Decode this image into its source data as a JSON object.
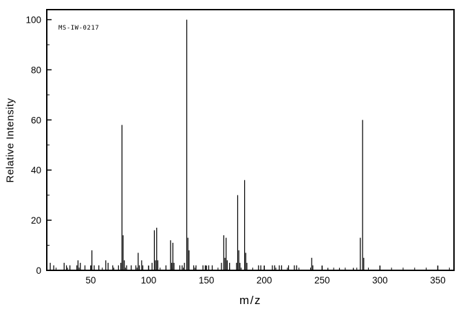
{
  "chart_data": {
    "type": "bar",
    "title": "",
    "annotation": "MS-IW-0217",
    "xlabel": "m/z",
    "ylabel": "Relative Intensity",
    "xlim": [
      12,
      364
    ],
    "ylim": [
      0,
      104
    ],
    "x_major_ticks": [
      50,
      100,
      150,
      200,
      250,
      300,
      350
    ],
    "x_minor_step": 10,
    "y_major_ticks": [
      0,
      20,
      40,
      60,
      80,
      100
    ],
    "y_minor_step": 10,
    "grid": "off",
    "legend": "none",
    "colors": {
      "line": "#000000",
      "background": "#ffffff"
    },
    "peaks": [
      [
        15,
        3
      ],
      [
        18,
        2
      ],
      [
        27,
        3
      ],
      [
        29,
        2
      ],
      [
        32,
        2
      ],
      [
        38,
        2
      ],
      [
        39,
        4
      ],
      [
        41,
        3
      ],
      [
        45,
        2
      ],
      [
        50,
        2
      ],
      [
        51,
        8
      ],
      [
        53,
        2
      ],
      [
        57,
        2
      ],
      [
        63,
        4
      ],
      [
        65,
        3
      ],
      [
        69,
        2
      ],
      [
        74,
        2
      ],
      [
        76,
        3
      ],
      [
        77,
        58
      ],
      [
        78,
        14
      ],
      [
        79,
        4
      ],
      [
        81,
        2
      ],
      [
        85,
        2
      ],
      [
        89,
        2
      ],
      [
        91,
        7
      ],
      [
        92,
        2
      ],
      [
        94,
        4
      ],
      [
        95,
        2
      ],
      [
        103,
        3
      ],
      [
        105,
        16
      ],
      [
        106,
        4
      ],
      [
        107,
        17
      ],
      [
        108,
        4
      ],
      [
        115,
        2
      ],
      [
        119,
        12
      ],
      [
        120,
        3
      ],
      [
        121,
        11
      ],
      [
        122,
        3
      ],
      [
        127,
        2
      ],
      [
        129,
        2
      ],
      [
        131,
        3
      ],
      [
        133,
        100
      ],
      [
        134,
        13
      ],
      [
        135,
        8
      ],
      [
        139,
        2
      ],
      [
        141,
        2
      ],
      [
        147,
        2
      ],
      [
        149,
        2
      ],
      [
        152,
        2
      ],
      [
        155,
        2
      ],
      [
        163,
        3
      ],
      [
        165,
        14
      ],
      [
        166,
        5
      ],
      [
        167,
        13
      ],
      [
        168,
        4
      ],
      [
        170,
        3
      ],
      [
        176,
        3
      ],
      [
        177,
        30
      ],
      [
        178,
        8
      ],
      [
        179,
        3
      ],
      [
        183,
        36
      ],
      [
        184,
        7
      ],
      [
        185,
        3
      ],
      [
        195,
        2
      ],
      [
        197,
        2
      ],
      [
        207,
        2
      ],
      [
        209,
        2
      ],
      [
        213,
        2
      ],
      [
        215,
        2
      ],
      [
        221,
        2
      ],
      [
        226,
        2
      ],
      [
        228,
        2
      ],
      [
        241,
        5
      ],
      [
        242,
        2
      ],
      [
        255,
        1
      ],
      [
        265,
        1
      ],
      [
        277,
        1
      ],
      [
        283,
        13
      ],
      [
        285,
        60
      ],
      [
        286,
        5
      ]
    ]
  }
}
